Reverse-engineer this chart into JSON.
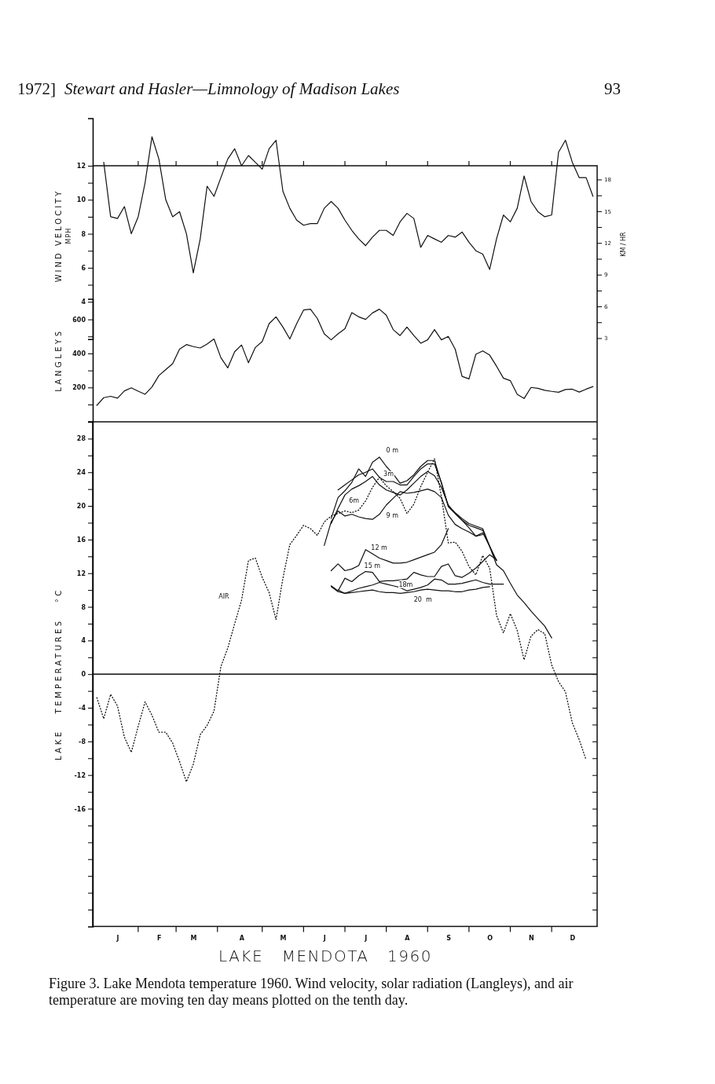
{
  "chart_data": [
    {
      "type": "line",
      "ylabel": "WIND VELOCITY\nMPH",
      "y2label": "KM / HR",
      "tick_labels": "y",
      "annotations": [
        "1972]",
        "Stewart and Hasler—Limnology of Madison Lakes",
        "93"
      ],
      "categories": [
        null,
        null,
        null,
        null,
        null,
        null,
        null,
        null,
        null,
        null,
        null,
        null,
        null,
        null,
        null,
        null,
        null,
        null,
        null,
        null,
        null,
        null,
        null,
        null,
        null,
        null,
        null,
        null,
        null,
        null,
        null,
        null,
        null,
        null,
        null,
        null,
        null,
        null,
        null,
        null,
        null,
        null,
        null,
        null,
        null,
        null,
        null,
        null,
        null,
        null,
        null,
        null,
        null,
        null,
        null,
        null,
        null,
        null,
        null,
        null,
        null,
        null,
        null,
        null,
        null,
        null,
        null,
        null,
        null,
        null,
        null,
        null,
        null
      ],
      "ylim": [
        1.8,
        14.8
      ],
      "yticks": [
        4,
        {
          "value": 5,
          "label": null
        },
        6,
        {
          "value": 7,
          "label": null
        },
        8,
        {
          "value": 9,
          "label": null
        },
        10,
        {
          "value": 11,
          "label": null
        },
        12
      ],
      "y2lim": [
        2.9,
        23.8
      ],
      "y2ticks": [
        3,
        {
          "value": 4.5,
          "label": null
        },
        6,
        {
          "value": 7.5,
          "label": null
        },
        9,
        {
          "value": 10.5,
          "label": null
        },
        12,
        {
          "value": 13.5,
          "label": null
        },
        15,
        {
          "value": 16.5,
          "label": null
        },
        18
      ],
      "series": [
        {
          "color": "#111111",
          "line_style": "solid",
          "values": [
            null,
            12.2,
            9.0,
            8.9,
            9.6,
            8.0,
            9.0,
            11.0,
            13.7,
            12.4,
            10.0,
            9.0,
            9.3,
            8.0,
            5.7,
            7.7,
            10.8,
            10.2,
            11.3,
            12.4,
            13.0,
            12.0,
            12.6,
            12.2,
            11.8,
            13.0,
            13.5,
            10.5,
            9.5,
            8.8,
            8.5,
            8.6,
            8.6,
            9.5,
            9.9,
            9.5,
            8.8,
            8.2,
            7.7,
            7.3,
            7.8,
            8.2,
            8.2,
            7.9,
            8.7,
            9.2,
            8.9,
            7.2,
            7.9,
            7.7,
            7.5,
            7.9,
            7.8,
            8.1,
            7.5,
            7.0,
            6.8,
            5.9,
            7.7,
            9.1,
            8.7,
            9.5,
            11.4,
            9.9,
            9.3,
            9.0,
            9.1,
            12.8,
            13.5,
            12.2,
            11.3,
            11.3,
            10.2
          ]
        }
      ]
    },
    {
      "type": "line",
      "ylabel": "LANGLEYS",
      "tick_labels": "y",
      "categories": [
        null,
        null,
        null,
        null,
        null,
        null,
        null,
        null,
        null,
        null,
        null,
        null,
        null,
        null,
        null,
        null,
        null,
        null,
        null,
        null,
        null,
        null,
        null,
        null,
        null,
        null,
        null,
        null,
        null,
        null,
        null,
        null,
        null,
        null,
        null,
        null,
        null,
        null,
        null,
        null,
        null,
        null,
        null,
        null,
        null,
        null,
        null,
        null,
        null,
        null,
        null,
        null,
        null,
        null,
        null,
        null,
        null,
        null,
        null,
        null,
        null,
        null,
        null,
        null,
        null,
        null,
        null,
        null,
        null,
        null,
        null,
        null,
        null
      ],
      "ylim": [
        0,
        720
      ],
      "yticks": [
        {
          "value": 100,
          "label": null
        },
        200,
        {
          "value": 300,
          "label": null
        },
        400,
        {
          "value": 500,
          "label": null
        },
        600
      ],
      "series": [
        {
          "color": "#111111",
          "line_style": "solid",
          "values": [
            95,
            140,
            148,
            137,
            180,
            198,
            178,
            160,
            203,
            270,
            305,
            340,
            425,
            452,
            440,
            432,
            455,
            485,
            375,
            315,
            410,
            450,
            345,
            435,
            470,
            575,
            615,
            555,
            485,
            575,
            655,
            660,
            605,
            515,
            480,
            515,
            545,
            640,
            615,
            600,
            638,
            660,
            625,
            540,
            505,
            555,
            505,
            460,
            480,
            540,
            480,
            500,
            425,
            265,
            250,
            395,
            415,
            390,
            325,
            255,
            240,
            160,
            135,
            200,
            195,
            183,
            177,
            172,
            188,
            190,
            173,
            190,
            205
          ]
        }
      ]
    },
    {
      "type": "line",
      "ylabel": "LAKE   TEMPERATURES   °C",
      "xlabel": "LAKE   MENDOTA   1960",
      "annotations": [
        "Figure 3. Lake Mendota temperature 1960. Wind velocity, solar radiation (Langleys), and air temperature are moving ten day means plotted on the tenth day."
      ],
      "categories": [
        null,
        null,
        null,
        "J",
        null,
        null,
        null,
        null,
        null,
        "F",
        null,
        null,
        null,
        null,
        "M",
        null,
        null,
        null,
        null,
        null,
        null,
        "A",
        null,
        null,
        null,
        null,
        null,
        "M",
        null,
        null,
        null,
        null,
        null,
        "J",
        null,
        null,
        null,
        null,
        null,
        "J",
        null,
        null,
        null,
        null,
        null,
        "A",
        null,
        null,
        null,
        null,
        null,
        "S",
        null,
        null,
        null,
        null,
        null,
        "O",
        null,
        null,
        null,
        null,
        null,
        "N",
        null,
        null,
        null,
        null,
        null,
        "D",
        null,
        null,
        null
      ],
      "ylim": [
        -30,
        30
      ],
      "yticks": [
        {
          "value": -28,
          "label": null
        },
        {
          "value": -26,
          "label": null
        },
        {
          "value": -24,
          "label": null
        },
        {
          "value": -22,
          "label": null
        },
        {
          "value": -20,
          "label": null
        },
        {
          "value": -18,
          "label": null
        },
        -16,
        {
          "value": -14,
          "label": null
        },
        -12,
        {
          "value": -10,
          "label": null
        },
        -8,
        {
          "value": -6,
          "label": null
        },
        -4,
        {
          "value": -2,
          "label": null
        },
        0,
        {
          "value": 2,
          "label": null
        },
        4,
        {
          "value": 6,
          "label": null
        },
        8,
        {
          "value": 10,
          "label": null
        },
        12,
        {
          "value": 14,
          "label": null
        },
        16,
        {
          "value": 18,
          "label": null
        },
        20,
        {
          "value": 22,
          "label": null
        },
        24,
        {
          "value": 26,
          "label": null
        },
        28
      ],
      "ref_lines": [
        {
          "axis": "y",
          "value": 0,
          "color": "#111111"
        }
      ],
      "series": [
        {
          "name": "AIR",
          "color": "#111111",
          "line_style": "dotted",
          "values": [
            -2.8,
            -5.3,
            -2.4,
            -3.8,
            -7.5,
            -9.3,
            -6.2,
            -3.3,
            -4.9,
            -6.9,
            -6.9,
            -8.2,
            -10.4,
            -12.8,
            -10.7,
            -7.2,
            -6.1,
            -4.4,
            0.9,
            3.1,
            6.0,
            8.8,
            13.5,
            13.8,
            11.5,
            9.7,
            6.5,
            11.4,
            15.4,
            16.5,
            17.7,
            17.3,
            16.5,
            18.1,
            18.8,
            19.1,
            19.4,
            19.2,
            19.5,
            20.6,
            22.2,
            23.4,
            22.4,
            21.7,
            20.9,
            19.1,
            20.2,
            22.3,
            24.0,
            25.6,
            21.1,
            15.6,
            15.7,
            14.6,
            12.8,
            11.8,
            14.1,
            12.6,
            7.0,
            4.9,
            7.2,
            5.2,
            1.7,
            4.5,
            5.3,
            4.8,
            1.1,
            -0.9,
            -2.1,
            -5.8,
            -7.8,
            -10.2,
            null
          ]
        },
        {
          "name": "0 m",
          "color": "#111111",
          "line_style": "solid",
          "values": [
            null,
            null,
            null,
            null,
            null,
            null,
            null,
            null,
            null,
            null,
            null,
            null,
            null,
            null,
            null,
            null,
            null,
            null,
            null,
            null,
            null,
            null,
            null,
            null,
            null,
            null,
            null,
            null,
            null,
            null,
            null,
            null,
            null,
            null,
            18.5,
            21.0,
            21.8,
            22.8,
            24.4,
            23.5,
            25.2,
            25.8,
            24.7,
            23.8,
            22.7,
            23.0,
            23.7,
            24.7,
            25.4,
            25.4,
            22.7,
            20.0,
            19.2,
            18.5,
            17.9,
            17.6,
            17.3,
            15.2,
            13.0,
            12.3,
            10.8,
            9.4,
            8.5,
            7.5,
            6.6,
            5.7,
            4.3,
            null,
            null,
            null,
            null,
            null,
            null
          ]
        },
        {
          "name": "3m",
          "color": "#111111",
          "line_style": "solid",
          "values": [
            null,
            null,
            null,
            null,
            null,
            null,
            null,
            null,
            null,
            null,
            null,
            null,
            null,
            null,
            null,
            null,
            null,
            null,
            null,
            null,
            null,
            null,
            null,
            null,
            null,
            null,
            null,
            null,
            null,
            null,
            null,
            null,
            null,
            null,
            null,
            21.9,
            22.5,
            23.1,
            23.7,
            24.0,
            24.4,
            23.4,
            22.9,
            22.9,
            22.5,
            22.5,
            23.5,
            24.4,
            25.0,
            25.0,
            22.8,
            19.9,
            19.1,
            18.3,
            17.7,
            17.4,
            17.1,
            15.2,
            13.5,
            null,
            null,
            null,
            null,
            null,
            null,
            null,
            null,
            null,
            null,
            null,
            null,
            null,
            null
          ]
        },
        {
          "name": "6m",
          "color": "#111111",
          "line_style": "solid",
          "values": [
            null,
            null,
            null,
            null,
            null,
            null,
            null,
            null,
            null,
            null,
            null,
            null,
            null,
            null,
            null,
            null,
            null,
            null,
            null,
            null,
            null,
            null,
            null,
            null,
            null,
            null,
            null,
            null,
            null,
            null,
            null,
            null,
            null,
            null,
            17.9,
            19.7,
            21.3,
            22.0,
            22.4,
            22.9,
            23.5,
            22.5,
            21.9,
            21.6,
            21.3,
            21.9,
            22.7,
            23.5,
            24.1,
            23.6,
            22.2,
            20.1,
            19.1,
            18.3,
            17.4,
            16.4,
            16.8,
            15.2,
            13.5,
            null,
            null,
            null,
            null,
            null,
            null,
            null,
            null,
            null,
            null,
            null,
            null,
            null,
            null
          ]
        },
        {
          "name": "9 m",
          "color": "#111111",
          "line_style": "solid",
          "values": [
            null,
            null,
            null,
            null,
            null,
            null,
            null,
            null,
            null,
            null,
            null,
            null,
            null,
            null,
            null,
            null,
            null,
            null,
            null,
            null,
            null,
            null,
            null,
            null,
            null,
            null,
            null,
            null,
            null,
            null,
            null,
            null,
            null,
            15.3,
            18.1,
            19.4,
            18.8,
            19.0,
            18.7,
            18.5,
            18.4,
            19.0,
            20.1,
            20.9,
            21.7,
            21.5,
            21.6,
            21.8,
            22.0,
            21.7,
            21.0,
            18.9,
            17.8,
            17.3,
            16.9,
            16.4,
            16.6,
            null,
            null,
            null,
            null,
            null,
            null,
            null,
            null,
            null,
            null,
            null,
            null,
            null,
            null,
            null,
            null
          ]
        },
        {
          "name": "12 m",
          "color": "#111111",
          "line_style": "solid",
          "values": [
            null,
            null,
            null,
            null,
            null,
            null,
            null,
            null,
            null,
            null,
            null,
            null,
            null,
            null,
            null,
            null,
            null,
            null,
            null,
            null,
            null,
            null,
            null,
            null,
            null,
            null,
            null,
            null,
            null,
            null,
            null,
            null,
            null,
            null,
            12.3,
            13.1,
            12.3,
            12.5,
            12.9,
            14.8,
            14.3,
            13.8,
            13.5,
            13.2,
            13.2,
            13.3,
            13.6,
            13.9,
            14.2,
            14.5,
            15.4,
            17.3,
            null,
            null,
            null,
            null,
            null,
            null,
            null,
            null,
            null,
            null,
            null,
            null,
            null,
            null,
            null,
            null,
            null,
            null,
            null,
            null,
            null
          ]
        },
        {
          "name": "15 m",
          "color": "#111111",
          "line_style": "solid",
          "values": [
            null,
            null,
            null,
            null,
            null,
            null,
            null,
            null,
            null,
            null,
            null,
            null,
            null,
            null,
            null,
            null,
            null,
            null,
            null,
            null,
            null,
            null,
            null,
            null,
            null,
            null,
            null,
            null,
            null,
            null,
            null,
            null,
            null,
            null,
            10.5,
            9.9,
            11.4,
            11.0,
            11.7,
            12.2,
            12.1,
            11.0,
            11.1,
            11.1,
            11.2,
            11.3,
            12.1,
            11.8,
            11.6,
            11.6,
            12.8,
            13.1,
            11.7,
            11.5,
            12.0,
            12.6,
            13.4,
            14.2,
            13.6,
            null,
            null,
            null,
            null,
            null,
            null,
            null,
            null,
            null,
            null,
            null,
            null,
            null,
            null
          ]
        },
        {
          "name": "18m",
          "color": "#111111",
          "line_style": "solid",
          "values": [
            null,
            null,
            null,
            null,
            null,
            null,
            null,
            null,
            null,
            null,
            null,
            null,
            null,
            null,
            null,
            null,
            null,
            null,
            null,
            null,
            null,
            null,
            null,
            null,
            null,
            null,
            null,
            null,
            null,
            null,
            null,
            null,
            null,
            null,
            10.4,
            9.8,
            9.6,
            9.9,
            10.2,
            10.4,
            10.6,
            10.9,
            10.7,
            10.5,
            10.3,
            9.9,
            10.1,
            10.3,
            10.6,
            11.3,
            11.2,
            10.7,
            10.7,
            10.8,
            11.0,
            11.2,
            10.9,
            10.7,
            10.7,
            10.7,
            null,
            null,
            null,
            null,
            null,
            null,
            null,
            null,
            null,
            null,
            null,
            null,
            null
          ]
        },
        {
          "name": "20  m",
          "color": "#111111",
          "line_style": "solid",
          "values": [
            null,
            null,
            null,
            null,
            null,
            null,
            null,
            null,
            null,
            null,
            null,
            null,
            null,
            null,
            null,
            null,
            null,
            null,
            null,
            null,
            null,
            null,
            null,
            null,
            null,
            null,
            null,
            null,
            null,
            null,
            null,
            null,
            null,
            null,
            null,
            10.0,
            9.6,
            9.7,
            9.8,
            9.9,
            10.0,
            9.8,
            9.7,
            9.7,
            9.6,
            9.7,
            9.8,
            10.0,
            10.1,
            10.0,
            9.9,
            9.9,
            9.8,
            9.8,
            10.0,
            10.1,
            10.3,
            10.4,
            null,
            null,
            null,
            null,
            null,
            null,
            null,
            null,
            null,
            null,
            null,
            null,
            null,
            null,
            null
          ]
        }
      ]
    }
  ]
}
